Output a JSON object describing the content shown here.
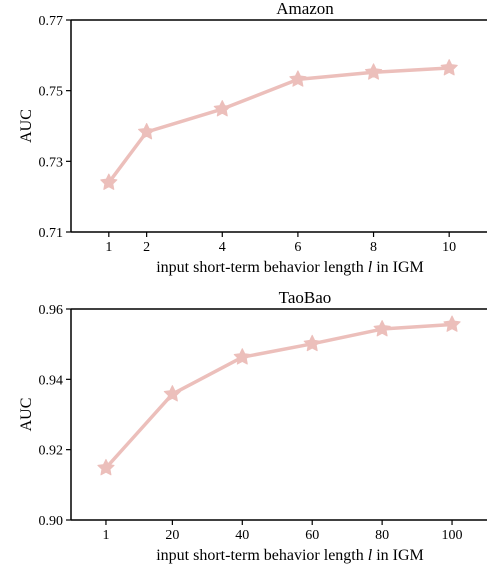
{
  "chart_data": [
    {
      "type": "line",
      "title": "Amazon",
      "xlabel_prefix": "input short-term behavior length ",
      "xlabel_var": "l",
      "xlabel_suffix": " in IGM",
      "ylabel": "AUC",
      "x": [
        1,
        2,
        4,
        6,
        8,
        10
      ],
      "xticks": [
        "1",
        "2",
        "4",
        "6",
        "8",
        "10"
      ],
      "xlim": [
        0,
        11
      ],
      "yticks": [
        "0.71",
        "0.73",
        "0.75",
        "0.77"
      ],
      "ytick_values": [
        0.71,
        0.73,
        0.75,
        0.77
      ],
      "ylim": [
        0.71,
        0.77
      ],
      "series": [
        {
          "values": [
            0.724,
            0.7383,
            0.7448,
            0.7532,
            0.7552,
            0.7564
          ],
          "color": "#ecbfbb",
          "marker": "star"
        }
      ],
      "grid": false,
      "legend": false
    },
    {
      "type": "line",
      "title": "TaoBao",
      "xlabel_prefix": "input short-term behavior length ",
      "xlabel_var": "l",
      "xlabel_suffix": " in IGM",
      "ylabel": "AUC",
      "x": [
        1,
        20,
        40,
        60,
        80,
        100
      ],
      "xticks": [
        "1",
        "20",
        "40",
        "60",
        "80",
        "100"
      ],
      "xlim": [
        -9,
        110
      ],
      "yticks": [
        "0.90",
        "0.92",
        "0.94",
        "0.96"
      ],
      "ytick_values": [
        0.9,
        0.92,
        0.94,
        0.96
      ],
      "ylim": [
        0.9,
        0.96
      ],
      "series": [
        {
          "values": [
            0.9148,
            0.9358,
            0.9463,
            0.9501,
            0.9543,
            0.9556
          ],
          "color": "#ecbfbb",
          "marker": "star"
        }
      ],
      "grid": false,
      "legend": false
    }
  ]
}
